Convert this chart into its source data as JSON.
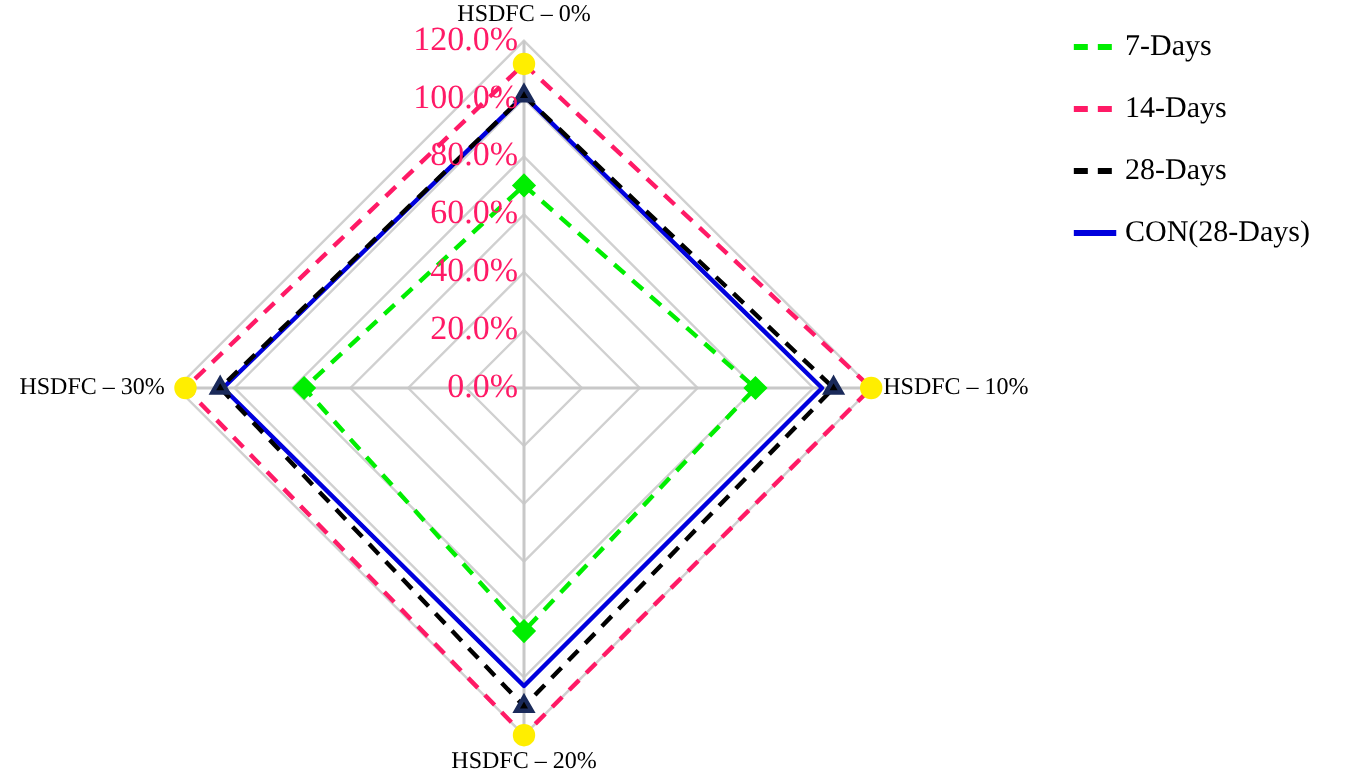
{
  "chart_data": {
    "type": "radar",
    "categories": [
      "HSDFC – 0%",
      "HSDFC – 10%",
      "HSDFC – 20%",
      "HSDFC – 30%"
    ],
    "series": [
      {
        "name": "7-Days",
        "color": "#00ee00",
        "values": [
          70,
          80,
          84,
          76
        ],
        "marker": "diamond",
        "line_style": "dashed"
      },
      {
        "name": "14-Days",
        "color": "#ff1a66",
        "values": [
          112,
          120,
          120,
          117
        ],
        "marker": "circle",
        "line_style": "dashed"
      },
      {
        "name": "28-Days",
        "color": "#000000",
        "values": [
          101,
          107,
          110,
          105
        ],
        "marker": "triangle",
        "line_style": "dashed"
      },
      {
        "name": "CON(28-Days)",
        "color": "#0000dd",
        "values": [
          101,
          103,
          103,
          104
        ],
        "marker": "none",
        "line_style": "solid"
      }
    ],
    "ylim": [
      0,
      120
    ],
    "yticks": [
      {
        "value": 0,
        "label": "0.0%"
      },
      {
        "value": 20,
        "label": "20.0%"
      },
      {
        "value": 40,
        "label": "40.0%"
      },
      {
        "value": 60,
        "label": "60.0%"
      },
      {
        "value": 80,
        "label": "80.0%"
      },
      {
        "value": 100,
        "label": "100.0%"
      },
      {
        "value": 120,
        "label": "120.0%"
      }
    ],
    "grid": true,
    "legend": "top right"
  }
}
